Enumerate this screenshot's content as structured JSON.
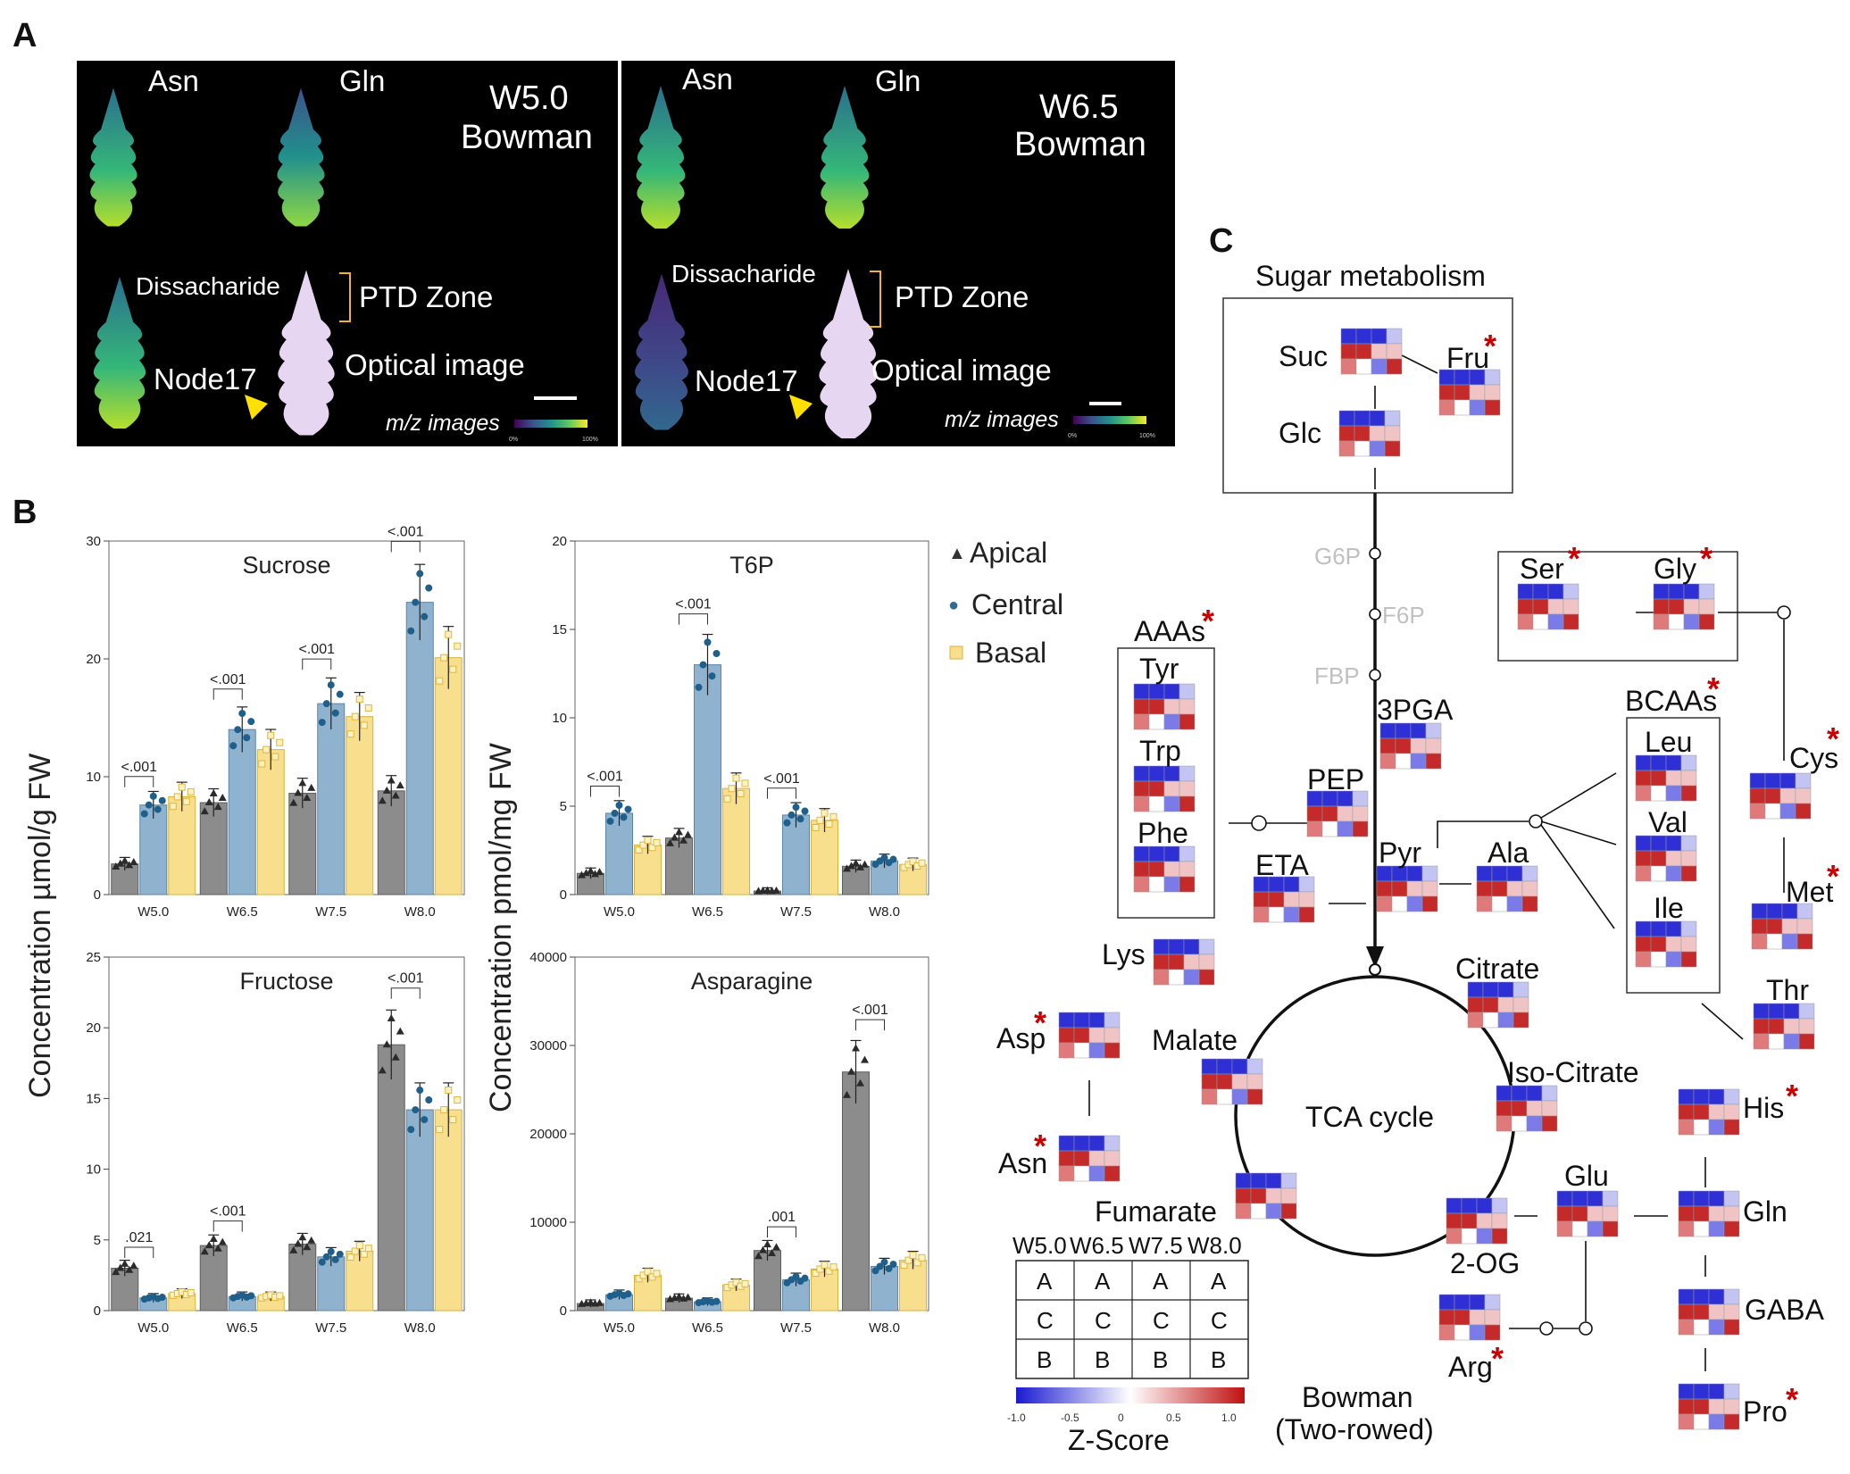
{
  "panels": {
    "A": "A",
    "B": "B",
    "C": "C"
  },
  "panelA": {
    "left": {
      "title1": "W5.0",
      "title2": "Bowman",
      "asn": "Asn",
      "gln": "Gln",
      "dis": "Dissacharide",
      "node": "Node17",
      "ptd": "PTD Zone",
      "optical": "Optical image",
      "mz": "m/z images",
      "cb_min": "0%",
      "cb_max": "100%"
    },
    "right": {
      "title1": "W6.5",
      "title2": "Bowman",
      "asn": "Asn",
      "gln": "Gln",
      "dis": "Dissacharide",
      "node": "Node17",
      "ptd": "PTD Zone",
      "optical": "Optical image",
      "mz": "m/z images",
      "cb_min": "0%",
      "cb_max": "100%"
    }
  },
  "panelB": {
    "ylabel_left": "Concentration µmol/g FW",
    "ylabel_right": "Concentration pmol/mg FW",
    "legend": [
      {
        "name": "Apical",
        "symbol": "▲",
        "color": "#8c8c8c"
      },
      {
        "name": "Central",
        "symbol": "●",
        "color": "#8fb3cf"
      },
      {
        "name": "Basal",
        "symbol": "■",
        "color": "#f7df8e"
      }
    ]
  },
  "chart_data": [
    {
      "type": "bar",
      "title": "Sucrose",
      "categories": [
        "W5.0",
        "W6.5",
        "W7.5",
        "W8.0"
      ],
      "ylim": [
        0,
        30
      ],
      "yticks": [
        0,
        10,
        20,
        30
      ],
      "series": [
        {
          "name": "Apical",
          "values": [
            2.6,
            7.8,
            8.6,
            8.8
          ]
        },
        {
          "name": "Central",
          "values": [
            7.6,
            14.0,
            16.2,
            24.8
          ]
        },
        {
          "name": "Basal",
          "values": [
            8.3,
            12.3,
            15.1,
            20.1
          ]
        }
      ],
      "annotations": [
        {
          "category": "W5.0",
          "label": "<.001"
        },
        {
          "category": "W6.5",
          "label": "<.001"
        },
        {
          "category": "W7.5",
          "label": "<.001"
        },
        {
          "category": "W8.0",
          "label": "<.001"
        }
      ]
    },
    {
      "type": "bar",
      "title": "T6P",
      "categories": [
        "W5.0",
        "W6.5",
        "W7.5",
        "W8.0"
      ],
      "ylim": [
        0,
        20
      ],
      "yticks": [
        0,
        5,
        10,
        15,
        20
      ],
      "series": [
        {
          "name": "Apical",
          "values": [
            1.2,
            3.2,
            0.2,
            1.6
          ]
        },
        {
          "name": "Central",
          "values": [
            4.6,
            13.0,
            4.5,
            1.9
          ]
        },
        {
          "name": "Basal",
          "values": [
            2.8,
            6.0,
            4.2,
            1.7
          ]
        }
      ],
      "annotations": [
        {
          "category": "W5.0",
          "label": "<.001"
        },
        {
          "category": "W6.5",
          "label": "<.001"
        },
        {
          "category": "W7.5",
          "label": "<.001"
        }
      ]
    },
    {
      "type": "bar",
      "title": "Fructose",
      "categories": [
        "W5.0",
        "W6.5",
        "W7.5",
        "W8.0"
      ],
      "ylim": [
        0,
        25
      ],
      "yticks": [
        0,
        5,
        10,
        15,
        20,
        25
      ],
      "series": [
        {
          "name": "Apical",
          "values": [
            3.0,
            4.6,
            4.7,
            18.8
          ]
        },
        {
          "name": "Central",
          "values": [
            0.9,
            1.0,
            3.8,
            14.2
          ]
        },
        {
          "name": "Basal",
          "values": [
            1.2,
            1.0,
            4.2,
            14.2
          ]
        }
      ],
      "annotations": [
        {
          "category": "W5.0",
          "label": ".021"
        },
        {
          "category": "W6.5",
          "label": "<.001"
        },
        {
          "category": "W8.0",
          "label": "<.001"
        }
      ]
    },
    {
      "type": "bar",
      "title": "Asparagine",
      "categories": [
        "W5.0",
        "W6.5",
        "W7.5",
        "W8.0"
      ],
      "ylim": [
        0,
        40000
      ],
      "yticks": [
        0,
        10000,
        20000,
        30000,
        40000
      ],
      "series": [
        {
          "name": "Apical",
          "values": [
            800,
            1400,
            6800,
            27000
          ]
        },
        {
          "name": "Central",
          "values": [
            1800,
            1000,
            3500,
            5000
          ]
        },
        {
          "name": "Basal",
          "values": [
            4000,
            2900,
            4700,
            5700
          ]
        }
      ],
      "annotations": [
        {
          "category": "W7.5",
          "label": ".001"
        },
        {
          "category": "W8.0",
          "label": "<.001"
        }
      ]
    }
  ],
  "panelC": {
    "sugar_title": "Sugar metabolism",
    "suc": "Suc",
    "fru": "Fru",
    "glc": "Glc",
    "g6p": "G6P",
    "f6p": "F6P",
    "fbp": "FBP",
    "pga": "3PGA",
    "pep": "PEP",
    "pyr": "Pyr",
    "eta": "ETA",
    "ala": "Ala",
    "aaas": "AAAs",
    "tyr": "Tyr",
    "trp": "Trp",
    "phe": "Phe",
    "ser": "Ser",
    "gly": "Gly",
    "cys": "Cys",
    "met": "Met",
    "thr": "Thr",
    "bcaas": "BCAAs",
    "leu": "Leu",
    "val": "Val",
    "ile": "Ile",
    "lys": "Lys",
    "asp": "Asp",
    "asn": "Asn",
    "malate": "Malate",
    "fumarate": "Fumarate",
    "citrate": "Citrate",
    "isocitrate": "Iso-Citrate",
    "tca": "TCA cycle",
    "glu": "Glu",
    "og": "2-OG",
    "arg": "Arg",
    "his": "His",
    "gln": "Gln",
    "gaba": "GABA",
    "pro": "Pro",
    "star": "*",
    "key": {
      "headers": [
        "W5.0",
        "W6.5",
        "W7.5",
        "W8.0"
      ],
      "rows": [
        [
          "A",
          "A",
          "A",
          "A"
        ],
        [
          "C",
          "C",
          "C",
          "C"
        ],
        [
          "B",
          "B",
          "B",
          "B"
        ]
      ]
    },
    "zscore": {
      "label": "Z-Score",
      "ticks": [
        "-1.0",
        "-0.5",
        "0",
        "0.5",
        "1.0"
      ]
    },
    "bowman1": "Bowman",
    "bowman2": "(Two-rowed)"
  }
}
